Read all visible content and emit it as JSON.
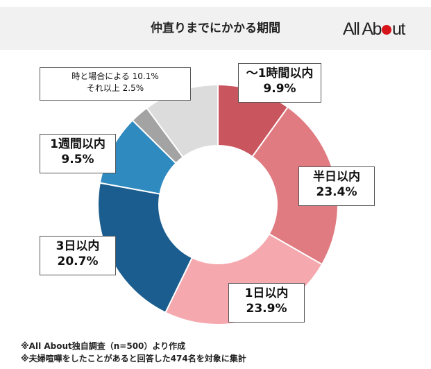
{
  "header": {
    "title": "仲直りまでにかかる期間",
    "logo_text": "All About"
  },
  "chart_data": {
    "type": "pie",
    "donut": true,
    "title": "仲直りまでにかかる期間",
    "categories": [
      "～1時間以内",
      "半日以内",
      "1日以内",
      "3日以内",
      "1週間以内",
      "それ以上",
      "時と場合による"
    ],
    "values": [
      9.9,
      23.4,
      23.9,
      20.7,
      9.5,
      2.5,
      10.1
    ],
    "value_labels": [
      "9.9%",
      "23.4%",
      "23.9%",
      "20.7%",
      "9.5%",
      "2.5%",
      "10.1%"
    ],
    "colors": [
      "#c9555e",
      "#e07b81",
      "#f5a8ae",
      "#1a5d8e",
      "#2f8ac0",
      "#a3a3a3",
      "#dcdcdc"
    ],
    "combined_label": {
      "line1": "時と場合による 10.1%",
      "line2": "それ以上 2.5%"
    }
  },
  "notes": [
    "※All About独自調査（n=500）より作成",
    "※夫婦喧嘩をしたことがあると回答した474名を対象に集計"
  ]
}
